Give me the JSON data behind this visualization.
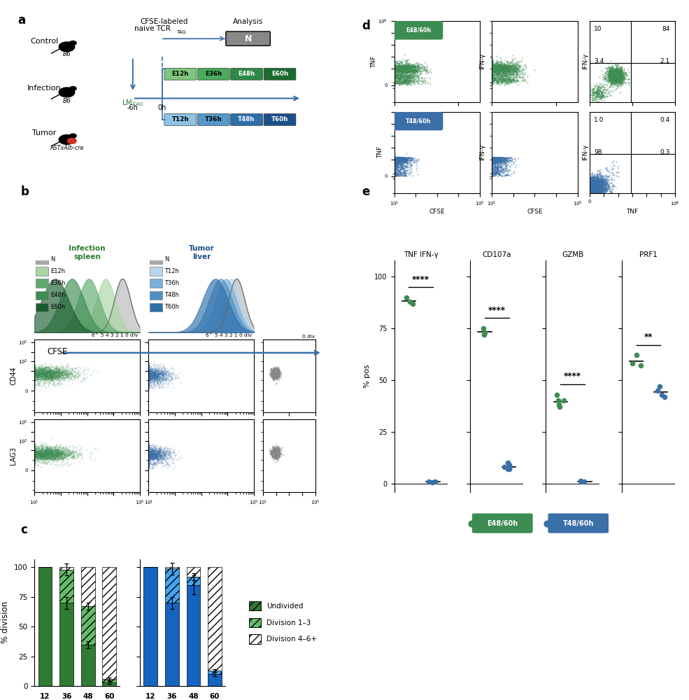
{
  "panel_a": {
    "groups": [
      "Control",
      "Infection",
      "Tumor"
    ],
    "timepoints_infection": [
      "E12h",
      "E36h",
      "E48h",
      "E60h"
    ],
    "timepoints_tumor": [
      "T12h",
      "T36h",
      "T48h",
      "T60h"
    ],
    "infection_colors": [
      "#7ec87e",
      "#4aad5e",
      "#2e8b47",
      "#1a6b30"
    ],
    "tumor_colors": [
      "#90c4e4",
      "#5599cc",
      "#2e6faa",
      "#1a4f8a"
    ],
    "n_color": "#888888",
    "cfse_text": "CFSE-labeled",
    "naive_tcr_text": "naive TCR",
    "analysis_text": "Analysis",
    "lm_tag_text": "LM",
    "minus6h": "-6h",
    "oh": "0h"
  },
  "panel_c": {
    "timepoints": [
      12,
      36,
      48,
      60
    ],
    "inf_undiv": [
      100,
      70,
      35,
      3
    ],
    "inf_div13": [
      0,
      28,
      32,
      3
    ],
    "inf_div46": [
      0,
      2,
      33,
      94
    ],
    "inf_undiv_err": [
      0,
      5,
      3,
      1
    ],
    "inf_div13_err": [
      0,
      5,
      3,
      1
    ],
    "tum_undiv": [
      100,
      70,
      85,
      10
    ],
    "tum_div13": [
      0,
      29,
      7,
      3
    ],
    "tum_div46": [
      0,
      1,
      8,
      87
    ],
    "tum_undiv_err": [
      0,
      5,
      8,
      2
    ],
    "tum_div13_err": [
      0,
      5,
      3,
      1
    ],
    "col_undiv_g": "#2e7d32",
    "col_div13_g": "#66bb6a",
    "col_undiv_b": "#1565c0",
    "col_div13_b": "#42a5f5"
  },
  "panel_e": {
    "green_TNF": [
      87,
      90,
      88
    ],
    "blue_TNF": [
      0.5,
      1.0,
      0.8
    ],
    "green_CD107": [
      73,
      75,
      72
    ],
    "blue_CD107": [
      7,
      8,
      9,
      10,
      8,
      7
    ],
    "green_GZMB": [
      43,
      38,
      40,
      37,
      40
    ],
    "blue_GZMB": [
      1.0,
      0.8,
      1.2
    ],
    "green_PRF1": [
      62,
      57,
      58
    ],
    "blue_PRF1": [
      47,
      42,
      45,
      43
    ],
    "green_color": "#3d8c52",
    "blue_color": "#3a6fa8",
    "sig_TNF": "****",
    "sig_CD107": "****",
    "sig_GZMB": "****",
    "sig_PRF1": "**",
    "yticks": [
      0,
      25,
      50,
      75,
      100
    ],
    "ylabel": "% pos",
    "titles": [
      "TNF IFN-γ",
      "CD107a",
      "GZMB",
      "PRF1"
    ],
    "legend_green": "E48/60h",
    "legend_blue": "T48/60h"
  },
  "panel_d": {
    "green_label": "E48/60h",
    "blue_label": "T48/60h",
    "green_color": "#3d8c52",
    "blue_color": "#3a6fa8",
    "q_green": [
      "10",
      "84",
      "3.4",
      "2.1"
    ],
    "q_blue": [
      "1.0",
      "0.4",
      "98",
      "0.3"
    ]
  }
}
